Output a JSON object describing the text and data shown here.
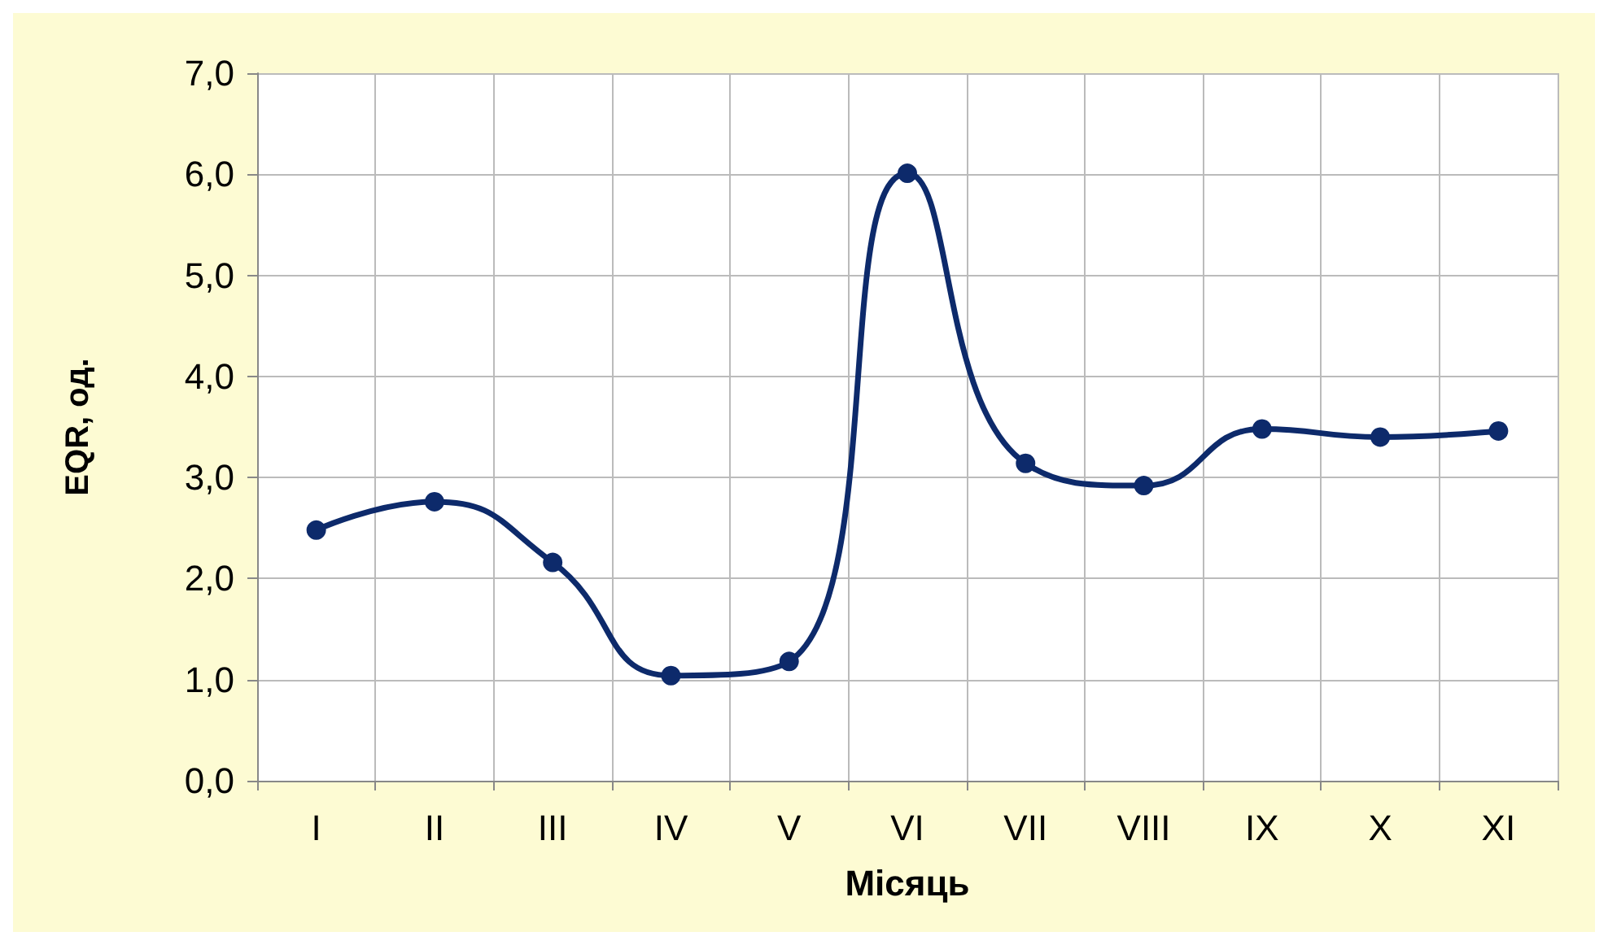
{
  "chart_data": {
    "type": "line",
    "xlabel": "Місяць",
    "ylabel": "EQR, од.",
    "categories": [
      "I",
      "II",
      "III",
      "IV",
      "V",
      "VI",
      "VII",
      "VIII",
      "IX",
      "X",
      "XI"
    ],
    "series": [
      {
        "color": "#0d2a6b",
        "values": [
          2.48,
          2.76,
          2.16,
          1.04,
          1.18,
          6.01,
          3.14,
          2.92,
          3.48,
          3.4,
          3.46
        ]
      }
    ],
    "ylim": [
      0,
      7
    ],
    "yticks": [
      {
        "value": 0,
        "label": "0,0"
      },
      {
        "value": 1,
        "label": "1,0"
      },
      {
        "value": 2,
        "label": "2,0"
      },
      {
        "value": 3,
        "label": "3,0"
      },
      {
        "value": 4,
        "label": "4,0"
      },
      {
        "value": 5,
        "label": "5,0"
      },
      {
        "value": 6,
        "label": "6,0"
      },
      {
        "value": 7,
        "label": "7,0"
      }
    ],
    "grid": true,
    "marker": "circle",
    "line_style": "solid"
  }
}
